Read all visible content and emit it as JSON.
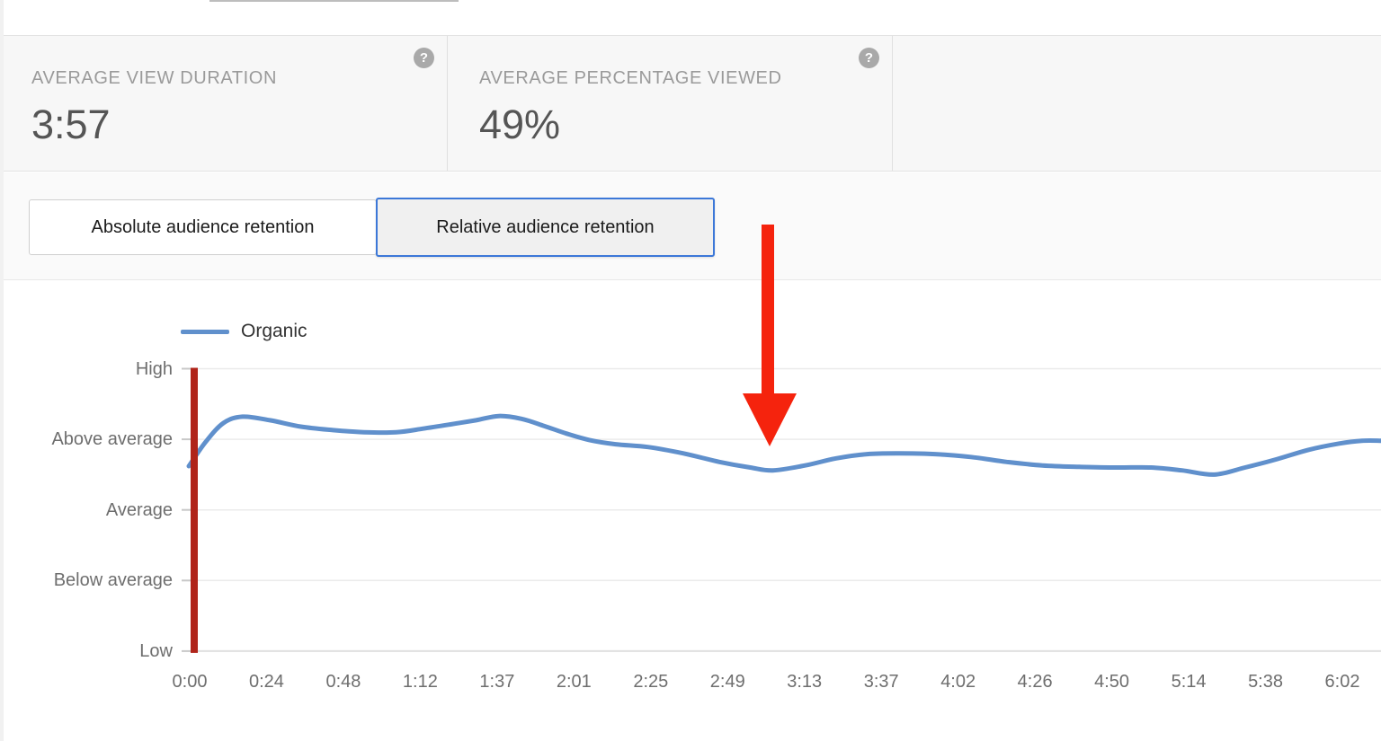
{
  "stats": {
    "cards": [
      {
        "label": "AVERAGE VIEW DURATION",
        "value": "3:57",
        "help_icon": "question-mark"
      },
      {
        "label": "AVERAGE PERCENTAGE VIEWED",
        "value": "49%",
        "help_icon": "question-mark"
      }
    ]
  },
  "tabs": {
    "absolute_label": "Absolute audience retention",
    "relative_label": "Relative audience retention",
    "active": "Relative audience retention",
    "active_border_color": "#3c78d8"
  },
  "chart_data": {
    "type": "line",
    "title": "",
    "legend": [
      {
        "name": "Organic",
        "color": "#6090cc"
      }
    ],
    "legend_position": "top-left",
    "grid": "horizontal",
    "x_axis": {
      "labels": [
        "0:00",
        "0:24",
        "0:48",
        "1:12",
        "1:37",
        "2:01",
        "2:25",
        "2:49",
        "3:13",
        "3:37",
        "4:02",
        "4:26",
        "4:50",
        "5:14",
        "5:38",
        "6:02"
      ],
      "range_seconds": [
        0,
        362
      ]
    },
    "y_axis": {
      "labels": [
        "High",
        "Above average",
        "Average",
        "Below average",
        "Low"
      ],
      "scale_note": "levels mapped Low=0, Below average=1, Average=2, Above average=3, High=4",
      "ylim": [
        0,
        4
      ]
    },
    "series": [
      {
        "name": "Organic",
        "color": "#6090cc",
        "points": [
          {
            "f": 0.0,
            "t_sec": 0,
            "level": 2.62
          },
          {
            "f": 0.014,
            "t_sec": 5,
            "level": 2.96
          },
          {
            "f": 0.029,
            "t_sec": 11,
            "level": 3.23
          },
          {
            "f": 0.045,
            "t_sec": 17,
            "level": 3.32
          },
          {
            "f": 0.068,
            "t_sec": 25,
            "level": 3.27
          },
          {
            "f": 0.094,
            "t_sec": 35,
            "level": 3.18
          },
          {
            "f": 0.121,
            "t_sec": 45,
            "level": 3.13
          },
          {
            "f": 0.147,
            "t_sec": 55,
            "level": 3.1
          },
          {
            "f": 0.174,
            "t_sec": 65,
            "level": 3.1
          },
          {
            "f": 0.196,
            "t_sec": 73,
            "level": 3.15
          },
          {
            "f": 0.219,
            "t_sec": 82,
            "level": 3.21
          },
          {
            "f": 0.241,
            "t_sec": 90,
            "level": 3.27
          },
          {
            "f": 0.26,
            "t_sec": 97,
            "level": 3.33
          },
          {
            "f": 0.279,
            "t_sec": 104,
            "level": 3.29
          },
          {
            "f": 0.298,
            "t_sec": 111,
            "level": 3.19
          },
          {
            "f": 0.317,
            "t_sec": 118,
            "level": 3.08
          },
          {
            "f": 0.336,
            "t_sec": 126,
            "level": 2.99
          },
          {
            "f": 0.358,
            "t_sec": 134,
            "level": 2.93
          },
          {
            "f": 0.385,
            "t_sec": 144,
            "level": 2.89
          },
          {
            "f": 0.415,
            "t_sec": 155,
            "level": 2.8
          },
          {
            "f": 0.445,
            "t_sec": 166,
            "level": 2.68
          },
          {
            "f": 0.471,
            "t_sec": 176,
            "level": 2.6
          },
          {
            "f": 0.49,
            "t_sec": 183,
            "level": 2.56
          },
          {
            "f": 0.517,
            "t_sec": 193,
            "level": 2.63
          },
          {
            "f": 0.543,
            "t_sec": 203,
            "level": 2.73
          },
          {
            "f": 0.569,
            "t_sec": 213,
            "level": 2.79
          },
          {
            "f": 0.596,
            "t_sec": 223,
            "level": 2.8
          },
          {
            "f": 0.626,
            "t_sec": 234,
            "level": 2.79
          },
          {
            "f": 0.656,
            "t_sec": 245,
            "level": 2.75
          },
          {
            "f": 0.686,
            "t_sec": 257,
            "level": 2.68
          },
          {
            "f": 0.716,
            "t_sec": 268,
            "level": 2.63
          },
          {
            "f": 0.747,
            "t_sec": 279,
            "level": 2.61
          },
          {
            "f": 0.777,
            "t_sec": 291,
            "level": 2.6
          },
          {
            "f": 0.807,
            "t_sec": 302,
            "level": 2.6
          },
          {
            "f": 0.833,
            "t_sec": 312,
            "level": 2.56
          },
          {
            "f": 0.86,
            "t_sec": 322,
            "level": 2.5
          },
          {
            "f": 0.886,
            "t_sec": 331,
            "level": 2.6
          },
          {
            "f": 0.913,
            "t_sec": 341,
            "level": 2.72
          },
          {
            "f": 0.939,
            "t_sec": 351,
            "level": 2.85
          },
          {
            "f": 0.965,
            "t_sec": 361,
            "level": 2.94
          },
          {
            "f": 0.984,
            "t_sec": 368,
            "level": 2.98
          },
          {
            "f": 1.0,
            "t_sec": 374,
            "level": 2.98
          }
        ]
      }
    ],
    "marker": {
      "name": "playhead-bar",
      "color": "#b0241a",
      "at_label": "0:00"
    }
  },
  "annotation": {
    "shape": "down-arrow",
    "color": "#f5230d",
    "points_at": "retention dip near 3:00"
  },
  "icons": {
    "help": "?"
  },
  "colors": {
    "stats_band_bg": "#f7f7f7",
    "tabs_band_bg": "#fafafa",
    "chart_bg": "#ffffff",
    "gridline": "#ebebeb",
    "axis_text": "#6e6e6e",
    "stat_label": "#9a9a9a",
    "stat_value": "#555555"
  }
}
